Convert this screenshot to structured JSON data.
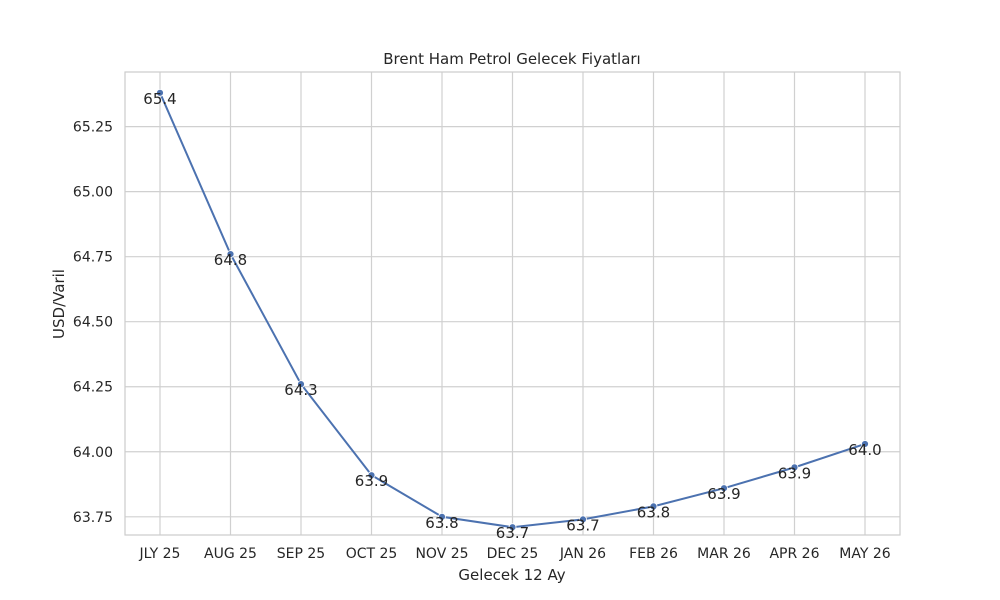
{
  "chart_data": {
    "type": "line",
    "title": "Brent Ham Petrol Gelecek Fiyatları",
    "xlabel": "Gelecek 12 Ay",
    "ylabel": "USD/Varil",
    "categories": [
      "JLY 25",
      "AUG 25",
      "SEP 25",
      "OCT 25",
      "NOV 25",
      "DEC 25",
      "JAN 26",
      "FEB 26",
      "MAR 26",
      "APR 26",
      "MAY 26"
    ],
    "series": [
      {
        "values": [
          65.38,
          64.76,
          64.26,
          63.91,
          63.75,
          63.71,
          63.74,
          63.79,
          63.86,
          63.94,
          64.03
        ],
        "labels": [
          "65.4",
          "64.8",
          "64.3",
          "63.9",
          "63.8",
          "63.7",
          "63.7",
          "63.8",
          "63.9",
          "63.9",
          "64.0"
        ]
      }
    ],
    "yticks": [
      "63.75",
      "64.00",
      "64.25",
      "64.50",
      "64.75",
      "65.00",
      "65.25"
    ],
    "ylim": [
      63.68,
      65.46
    ],
    "grid": true,
    "colors": {
      "line": "#4c72b0",
      "grid": "#d0d0d0",
      "frame": "#cccccc",
      "text": "#262626"
    }
  }
}
